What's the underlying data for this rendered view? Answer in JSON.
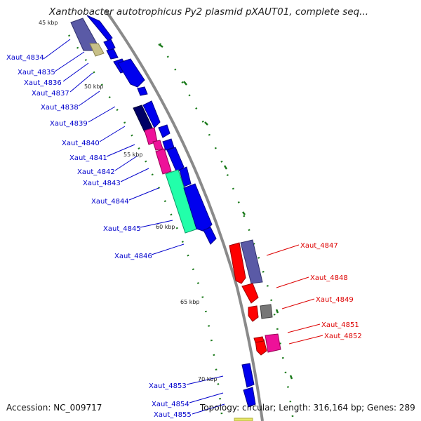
{
  "title": "Xanthobacter autotrophicus Py2 plasmid pXAUT01, complete seq...",
  "accession": "Accession: NC_009717",
  "topology": "Topology: circular; Length: 316,164 bp; Genes: 289",
  "colors": {
    "forward_label": "#0000cc",
    "reverse_label": "#dd0000",
    "backbone": "#888888",
    "tick": "#1a7a1a"
  },
  "ticks": [
    "45 kbp",
    "50 kbp",
    "55 kbp",
    "60 kbp",
    "65 kbp",
    "70 kbp"
  ],
  "gene_labels_forward": [
    "Xaut_4834",
    "Xaut_4835",
    "Xaut_4836",
    "Xaut_4837",
    "Xaut_4838",
    "Xaut_4839",
    "Xaut_4840",
    "Xaut_4841",
    "Xaut_4842",
    "Xaut_4843",
    "Xaut_4844",
    "Xaut_4845",
    "Xaut_4846",
    "Xaut_4853",
    "Xaut_4854",
    "Xaut_4855"
  ],
  "gene_labels_reverse": [
    "Xaut_4847",
    "Xaut_4848",
    "Xaut_4849",
    "Xaut_4851",
    "Xaut_4852"
  ]
}
